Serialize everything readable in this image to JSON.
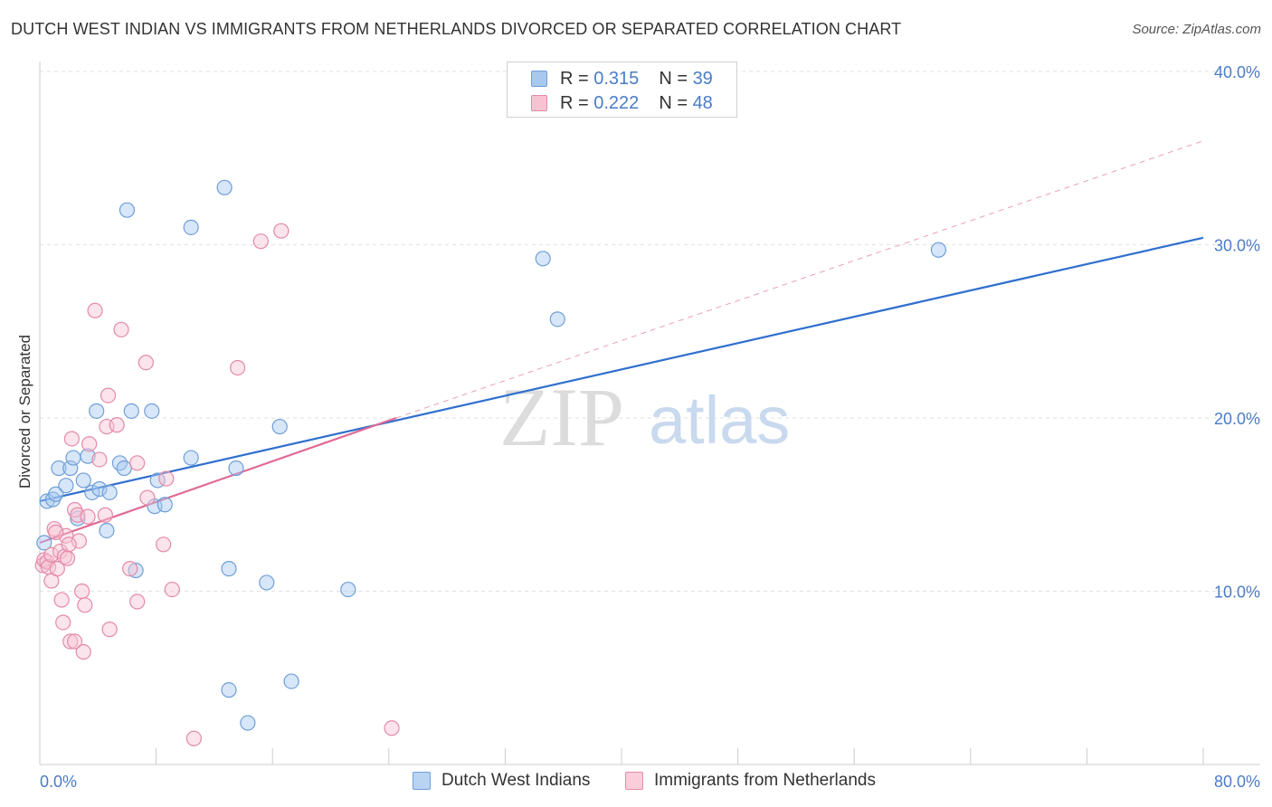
{
  "title": "DUTCH WEST INDIAN VS IMMIGRANTS FROM NETHERLANDS DIVORCED OR SEPARATED CORRELATION CHART",
  "source": "Source: ZipAtlas.com",
  "watermark": {
    "zip": "ZIP",
    "atlas": "atlas"
  },
  "legend": {
    "r_label": "R =",
    "n_label": "N =",
    "rows": [
      {
        "r": "0.315",
        "n": "39",
        "color": "#a9c8f0",
        "border": "#6f9fd8"
      },
      {
        "r": "0.222",
        "n": "48",
        "color": "#f7c3d2",
        "border": "#e48aa8"
      }
    ]
  },
  "bottom_legend": [
    {
      "label": "Dutch West Indians",
      "color": "#b9d3f3",
      "border": "#6f9fd8"
    },
    {
      "label": "Immigrants from Netherlands",
      "color": "#f9cdd9",
      "border": "#e48aa8"
    }
  ],
  "chart_data": {
    "type": "scatter",
    "xlabel": "",
    "ylabel": "Divorced or Separated",
    "xlim": [
      0,
      80
    ],
    "ylim": [
      0,
      40
    ],
    "x_tick_labels": [
      "0.0%",
      "80.0%"
    ],
    "y_ticks": [
      10,
      20,
      30,
      40
    ],
    "y_tick_labels": [
      "10.0%",
      "20.0%",
      "30.0%",
      "40.0%"
    ],
    "grid": true,
    "series": [
      {
        "name": "Dutch West Indians",
        "color": "#6f9fd8",
        "fill": "rgba(167,199,240,0.45)",
        "trend": {
          "x": [
            0,
            80
          ],
          "y": [
            15.2,
            30.4
          ],
          "color": "#2f6fcf",
          "style": "solid"
        },
        "points": [
          [
            0.3,
            12.8
          ],
          [
            0.5,
            15.2
          ],
          [
            0.9,
            15.3
          ],
          [
            1.1,
            15.6
          ],
          [
            1.3,
            17.1
          ],
          [
            1.8,
            16.1
          ],
          [
            2.1,
            17.1
          ],
          [
            2.3,
            17.7
          ],
          [
            2.6,
            14.2
          ],
          [
            3.0,
            16.4
          ],
          [
            3.3,
            17.8
          ],
          [
            3.6,
            15.7
          ],
          [
            3.9,
            20.4
          ],
          [
            4.1,
            15.9
          ],
          [
            4.8,
            15.7
          ],
          [
            4.6,
            13.5
          ],
          [
            6.0,
            32.0
          ],
          [
            5.5,
            17.4
          ],
          [
            5.8,
            17.1
          ],
          [
            6.3,
            20.4
          ],
          [
            6.6,
            11.2
          ],
          [
            7.7,
            20.4
          ],
          [
            7.9,
            14.9
          ],
          [
            8.1,
            16.4
          ],
          [
            8.6,
            15.0
          ],
          [
            10.4,
            31.0
          ],
          [
            10.4,
            17.7
          ],
          [
            12.7,
            33.3
          ],
          [
            13.0,
            4.3
          ],
          [
            13.0,
            11.3
          ],
          [
            13.5,
            17.1
          ],
          [
            14.3,
            2.4
          ],
          [
            15.6,
            10.5
          ],
          [
            16.5,
            19.5
          ],
          [
            17.3,
            4.8
          ],
          [
            21.2,
            10.1
          ],
          [
            34.6,
            29.2
          ],
          [
            35.6,
            25.7
          ],
          [
            61.8,
            29.7
          ]
        ]
      },
      {
        "name": "Immigrants from Netherlands",
        "color": "#e48aa8",
        "fill": "rgba(247,195,210,0.45)",
        "trend": {
          "x": [
            0,
            24.5
          ],
          "y": [
            12.8,
            20.0
          ],
          "color": "#e06a96",
          "style": "solid"
        },
        "trend_ext": {
          "x": [
            24.5,
            80
          ],
          "y": [
            20.0,
            36.0
          ],
          "color": "#e8a0b8",
          "style": "dashed"
        },
        "points": [
          [
            0.2,
            11.5
          ],
          [
            0.3,
            11.8
          ],
          [
            0.5,
            11.7
          ],
          [
            0.6,
            11.4
          ],
          [
            0.8,
            12.1
          ],
          [
            0.8,
            10.6
          ],
          [
            1.0,
            13.6
          ],
          [
            1.2,
            11.3
          ],
          [
            1.4,
            12.3
          ],
          [
            1.5,
            9.5
          ],
          [
            1.6,
            8.2
          ],
          [
            1.7,
            12.0
          ],
          [
            1.8,
            13.2
          ],
          [
            1.9,
            11.9
          ],
          [
            2.1,
            7.1
          ],
          [
            2.2,
            18.8
          ],
          [
            2.4,
            14.7
          ],
          [
            2.4,
            7.1
          ],
          [
            2.6,
            14.4
          ],
          [
            2.7,
            12.9
          ],
          [
            2.9,
            10.0
          ],
          [
            3.0,
            6.5
          ],
          [
            3.1,
            9.2
          ],
          [
            3.3,
            14.3
          ],
          [
            3.4,
            18.5
          ],
          [
            3.8,
            26.2
          ],
          [
            4.1,
            17.6
          ],
          [
            4.5,
            14.4
          ],
          [
            4.6,
            19.5
          ],
          [
            4.7,
            21.3
          ],
          [
            4.8,
            7.8
          ],
          [
            5.3,
            19.6
          ],
          [
            5.6,
            25.1
          ],
          [
            6.2,
            11.3
          ],
          [
            6.7,
            17.4
          ],
          [
            6.7,
            9.4
          ],
          [
            7.3,
            23.2
          ],
          [
            7.4,
            15.4
          ],
          [
            8.5,
            12.7
          ],
          [
            8.7,
            16.5
          ],
          [
            9.1,
            10.1
          ],
          [
            10.6,
            1.5
          ],
          [
            13.6,
            22.9
          ],
          [
            15.2,
            30.2
          ],
          [
            16.6,
            30.8
          ],
          [
            24.2,
            2.1
          ],
          [
            1.1,
            13.4
          ],
          [
            2.0,
            12.7
          ]
        ]
      }
    ]
  }
}
